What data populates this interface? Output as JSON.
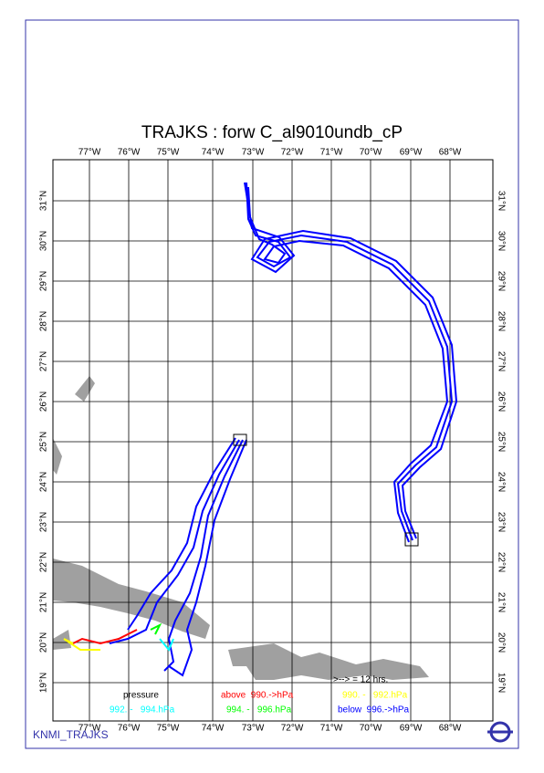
{
  "title": "TRAJKS : forw C_al9010undb_cP",
  "longitudes": [
    "77°W",
    "76°W",
    "75°W",
    "74°W",
    "73°W",
    "72°W",
    "71°W",
    "70°W",
    "69°W",
    "68°W"
  ],
  "latitudes": [
    "31°N",
    "30°N",
    "29°N",
    "28°N",
    "27°N",
    "26°N",
    "25°N",
    "24°N",
    "23°N",
    "22°N",
    "21°N",
    "20°N",
    "19°N"
  ],
  "legend": {
    "heading": "pressure",
    "arrow_note": ">--> = 12 hrs.",
    "classes": [
      {
        "label": "above  990.->hPa",
        "color": "#ff0000"
      },
      {
        "label": "990. -   992.hPa",
        "color": "#ffff00"
      },
      {
        "label": "992. -   994.hPa",
        "color": "#00ffff"
      },
      {
        "label": "994. -   996.hPa",
        "color": "#00ff00"
      },
      {
        "label": "below  996.->hPa",
        "color": "#0000ff"
      }
    ]
  },
  "footer": "KNMI_TRAJKS"
}
